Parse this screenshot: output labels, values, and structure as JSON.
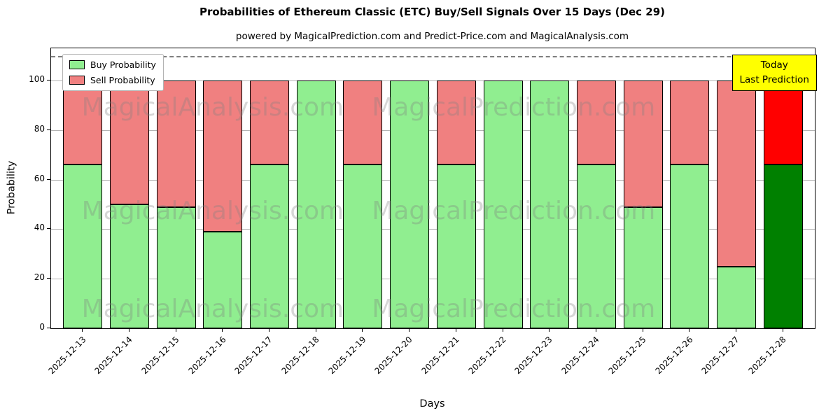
{
  "chart_data": {
    "type": "bar",
    "stacked": true,
    "title": "Probabilities of Ethereum Classic (ETC) Buy/Sell Signals Over 15 Days (Dec 29)",
    "subtitle": "powered by MagicalPrediction.com and Predict-Price.com and MagicalAnalysis.com",
    "xlabel": "Days",
    "ylabel": "Probability",
    "ylim": [
      0,
      113
    ],
    "yticks": [
      0,
      20,
      40,
      60,
      80,
      100
    ],
    "grid": "horizontal",
    "legend_position": "upper-left",
    "categories": [
      "2025-12-13",
      "2025-12-14",
      "2025-12-15",
      "2025-12-16",
      "2025-12-17",
      "2025-12-18",
      "2025-12-19",
      "2025-12-20",
      "2025-12-21",
      "2025-12-22",
      "2025-12-23",
      "2025-12-24",
      "2025-12-25",
      "2025-12-26",
      "2025-12-27",
      "2025-12-28"
    ],
    "series": [
      {
        "name": "Buy Probability",
        "color": "#90EE90",
        "last_bar_color": "#008000",
        "values": [
          66,
          50,
          49,
          39,
          66,
          100,
          66,
          100,
          66,
          100,
          100,
          66,
          49,
          66,
          25,
          66
        ]
      },
      {
        "name": "Sell Probability",
        "color": "#F08080",
        "last_bar_color": "#FF0000",
        "values": [
          34,
          50,
          51,
          61,
          34,
          0,
          34,
          0,
          34,
          0,
          0,
          34,
          51,
          34,
          75,
          34
        ]
      }
    ],
    "dashed_line_y": 110,
    "bar_edge_color": "#000000"
  },
  "annotation": {
    "line1": "Today",
    "line2": "Last Prediction",
    "bg": "#FFFF00"
  },
  "watermarks": [
    "MagicalAnalysis.com",
    "MagicalPrediction.com"
  ]
}
